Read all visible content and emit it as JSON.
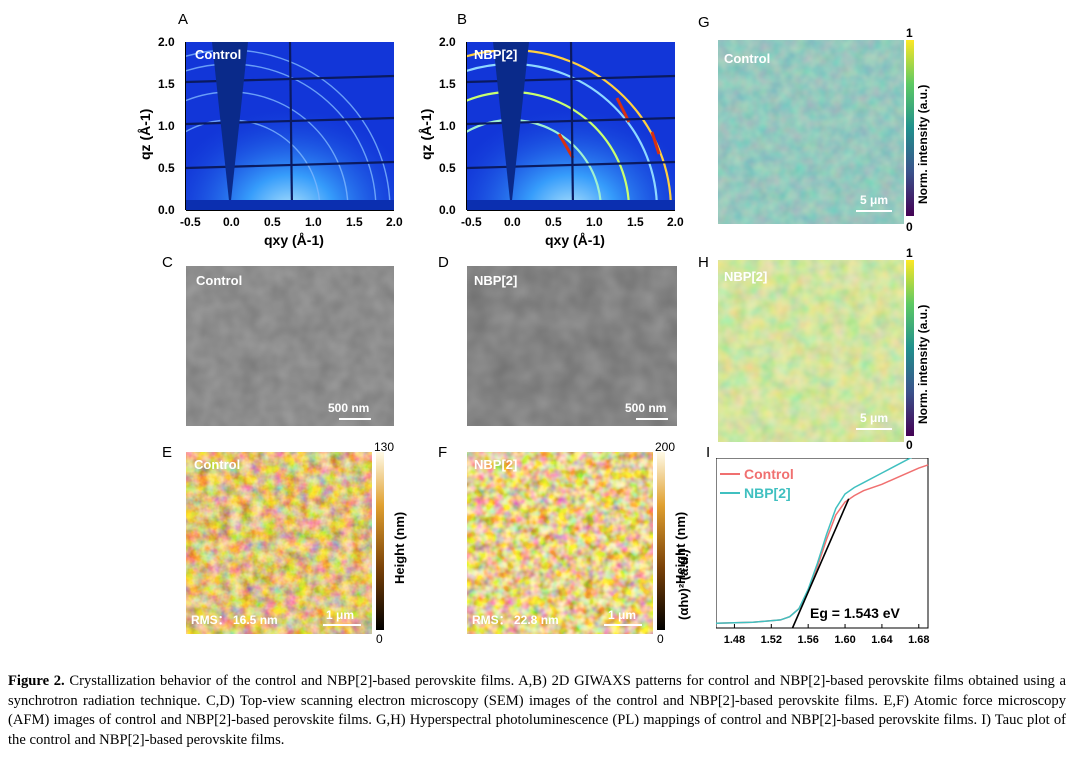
{
  "panels": {
    "A": {
      "letter": "A",
      "label": "Control"
    },
    "B": {
      "letter": "B",
      "label": "NBP[2]"
    },
    "C": {
      "letter": "C",
      "label": "Control",
      "scalebar": "500 nm"
    },
    "D": {
      "letter": "D",
      "label": "NBP[2]",
      "scalebar": "500 nm"
    },
    "E": {
      "letter": "E",
      "label": "Control",
      "rms": "RMS： 16.5 nm",
      "scalebar": "1 μm",
      "cb_max": "130",
      "cb_min": "0",
      "cb_label": "Height (nm)"
    },
    "F": {
      "letter": "F",
      "label": "NBP[2]",
      "rms": "RMS： 22.8 nm",
      "scalebar": "1 μm",
      "cb_max": "200",
      "cb_min": "0",
      "cb_label": "Height (nm)"
    },
    "G": {
      "letter": "G",
      "label": "Control",
      "scalebar": "5 μm",
      "cb_max": "1",
      "cb_min": "0",
      "cb_label": "Norm. intensity (a.u.)"
    },
    "H": {
      "letter": "H",
      "label": "NBP[2]",
      "scalebar": "5 μm",
      "cb_max": "1",
      "cb_min": "0",
      "cb_label": "Norm. intensity (a.u.)"
    },
    "I": {
      "letter": "I"
    }
  },
  "giwaxs_axes": {
    "x_ticks": [
      "-0.5",
      "0.0",
      "0.5",
      "1.0",
      "1.5",
      "2.0"
    ],
    "y_ticks": [
      "0.0",
      "0.5",
      "1.0",
      "1.5",
      "2.0"
    ],
    "xlabel": "qxy (Å-1)",
    "ylabel": "qz (Å-1)"
  },
  "chart_data": {
    "type": "line",
    "title": "",
    "xlabel": "",
    "ylabel": "(αhν)² (a.u.)",
    "xlim": [
      1.46,
      1.69
    ],
    "x_ticks": [
      "1.48",
      "1.52",
      "1.56",
      "1.60",
      "1.64",
      "1.68"
    ],
    "legend_position": "top-left",
    "annotation": "Eg = 1.543 eV",
    "series": [
      {
        "name": "Control",
        "color": "#f07070",
        "x": [
          1.46,
          1.5,
          1.53,
          1.54,
          1.55,
          1.56,
          1.57,
          1.58,
          1.59,
          1.6,
          1.61,
          1.62,
          1.64,
          1.66,
          1.68,
          1.69
        ],
        "y": [
          0.03,
          0.035,
          0.05,
          0.07,
          0.12,
          0.23,
          0.38,
          0.55,
          0.7,
          0.78,
          0.82,
          0.85,
          0.89,
          0.94,
          0.99,
          1.01
        ]
      },
      {
        "name": "NBP[2]",
        "color": "#40c0c0",
        "x": [
          1.46,
          1.5,
          1.53,
          1.54,
          1.55,
          1.56,
          1.57,
          1.58,
          1.59,
          1.6,
          1.61,
          1.62,
          1.64,
          1.66,
          1.68,
          1.69
        ],
        "y": [
          0.03,
          0.035,
          0.05,
          0.07,
          0.12,
          0.24,
          0.4,
          0.58,
          0.74,
          0.83,
          0.87,
          0.9,
          0.96,
          1.02,
          1.08,
          1.1
        ]
      }
    ],
    "fit_line": {
      "x": [
        1.543,
        1.604
      ],
      "y": [
        0.0,
        0.8
      ]
    }
  },
  "caption": {
    "bold": "Figure 2.",
    "text": " Crystallization behavior of the control and NBP[2]-based perovskite films. A,B) 2D GIWAXS patterns for control and NBP[2]-based perovskite films obtained using a synchrotron radiation technique. C,D) Top-view scanning electron microscopy (SEM) images of the control and NBP[2]-based perovskite films. E,F) Atomic force microscopy (AFM) images of control and NBP[2]-based perovskite films. G,H) Hyperspectral photoluminescence (PL) mappings of control and NBP[2]-based perovskite films. I) Tauc plot of the control and NBP[2]-based perovskite films."
  }
}
